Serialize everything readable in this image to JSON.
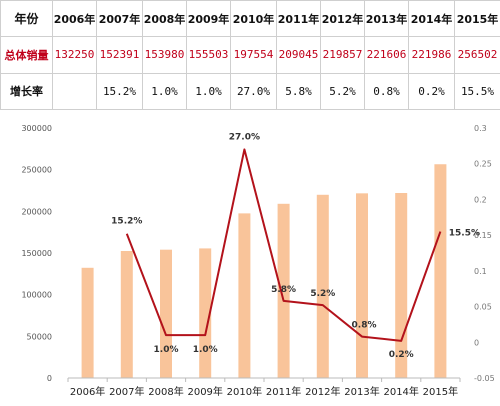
{
  "table": {
    "header": [
      "年份",
      "2006年",
      "2007年",
      "2008年",
      "2009年",
      "2010年",
      "2011年",
      "2012年",
      "2013年",
      "2014年",
      "2015年"
    ],
    "sales_row": [
      "总体销量",
      "132250",
      "152391",
      "153980",
      "155503",
      "197554",
      "209045",
      "219857",
      "221606",
      "221986",
      "256502"
    ],
    "growth_row": [
      "增长率",
      "",
      "15.2%",
      "1.0%",
      "1.0%",
      "27.0%",
      "5.8%",
      "5.2%",
      "0.8%",
      "0.2%",
      "15.5%"
    ]
  },
  "chart_data": {
    "type": "bar",
    "categories": [
      "2006年",
      "2007年",
      "2008年",
      "2009年",
      "2010年",
      "2011年",
      "2012年",
      "2013年",
      "2014年",
      "2015年"
    ],
    "series": [
      {
        "type": "bar",
        "axis": "left",
        "color": "#f9c49a",
        "values": [
          132250,
          152391,
          153980,
          155503,
          197554,
          209045,
          219857,
          221606,
          221986,
          256502
        ]
      },
      {
        "type": "line",
        "axis": "right",
        "color": "#b3121b",
        "values": [
          null,
          0.152,
          0.01,
          0.01,
          0.27,
          0.058,
          0.052,
          0.008,
          0.002,
          0.155
        ],
        "labels": [
          "",
          "15.2%",
          "1.0%",
          "1.0%",
          "27.0%",
          "5.8%",
          "5.2%",
          "0.8%",
          "0.2%",
          "15.5%"
        ]
      }
    ],
    "left_axis": {
      "min": 0,
      "max": 300000,
      "ticks": [
        "0",
        "50000",
        "100000",
        "150000",
        "200000",
        "250000",
        "300000"
      ]
    },
    "right_axis": {
      "min": -0.05,
      "max": 0.3,
      "ticks": [
        "-0.05",
        "0",
        "0.05",
        "0.1",
        "0.15",
        "0.2",
        "0.25",
        "0.3"
      ]
    },
    "grid": false,
    "title": "",
    "xlabel": "",
    "ylabel": ""
  }
}
